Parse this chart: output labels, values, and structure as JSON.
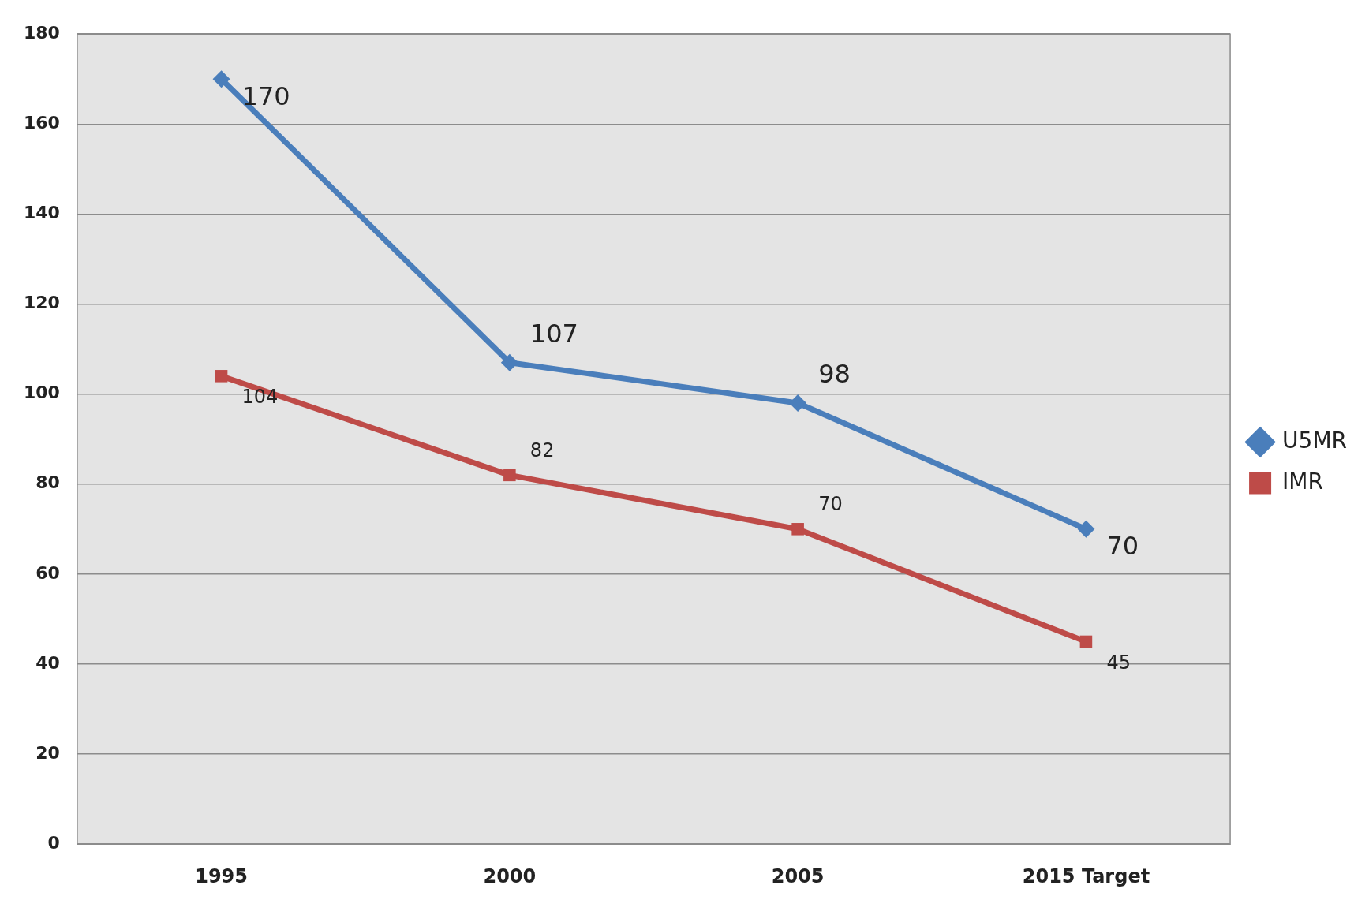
{
  "chart_data": {
    "type": "line",
    "categories": [
      "1995",
      "2000",
      "2005",
      "2015 Target"
    ],
    "series": [
      {
        "name": "U5MR",
        "color": "#4a7ebb",
        "values": [
          170,
          107,
          98,
          70
        ],
        "marker": "diamond"
      },
      {
        "name": "IMR",
        "color": "#be4b48",
        "values": [
          104,
          82,
          70,
          45
        ],
        "marker": "square"
      }
    ],
    "ylim": [
      0,
      180
    ],
    "yticks": [
      0,
      20,
      40,
      60,
      80,
      100,
      120,
      140,
      160,
      180
    ],
    "grid": "y",
    "legend": "right",
    "data_labels": true
  }
}
